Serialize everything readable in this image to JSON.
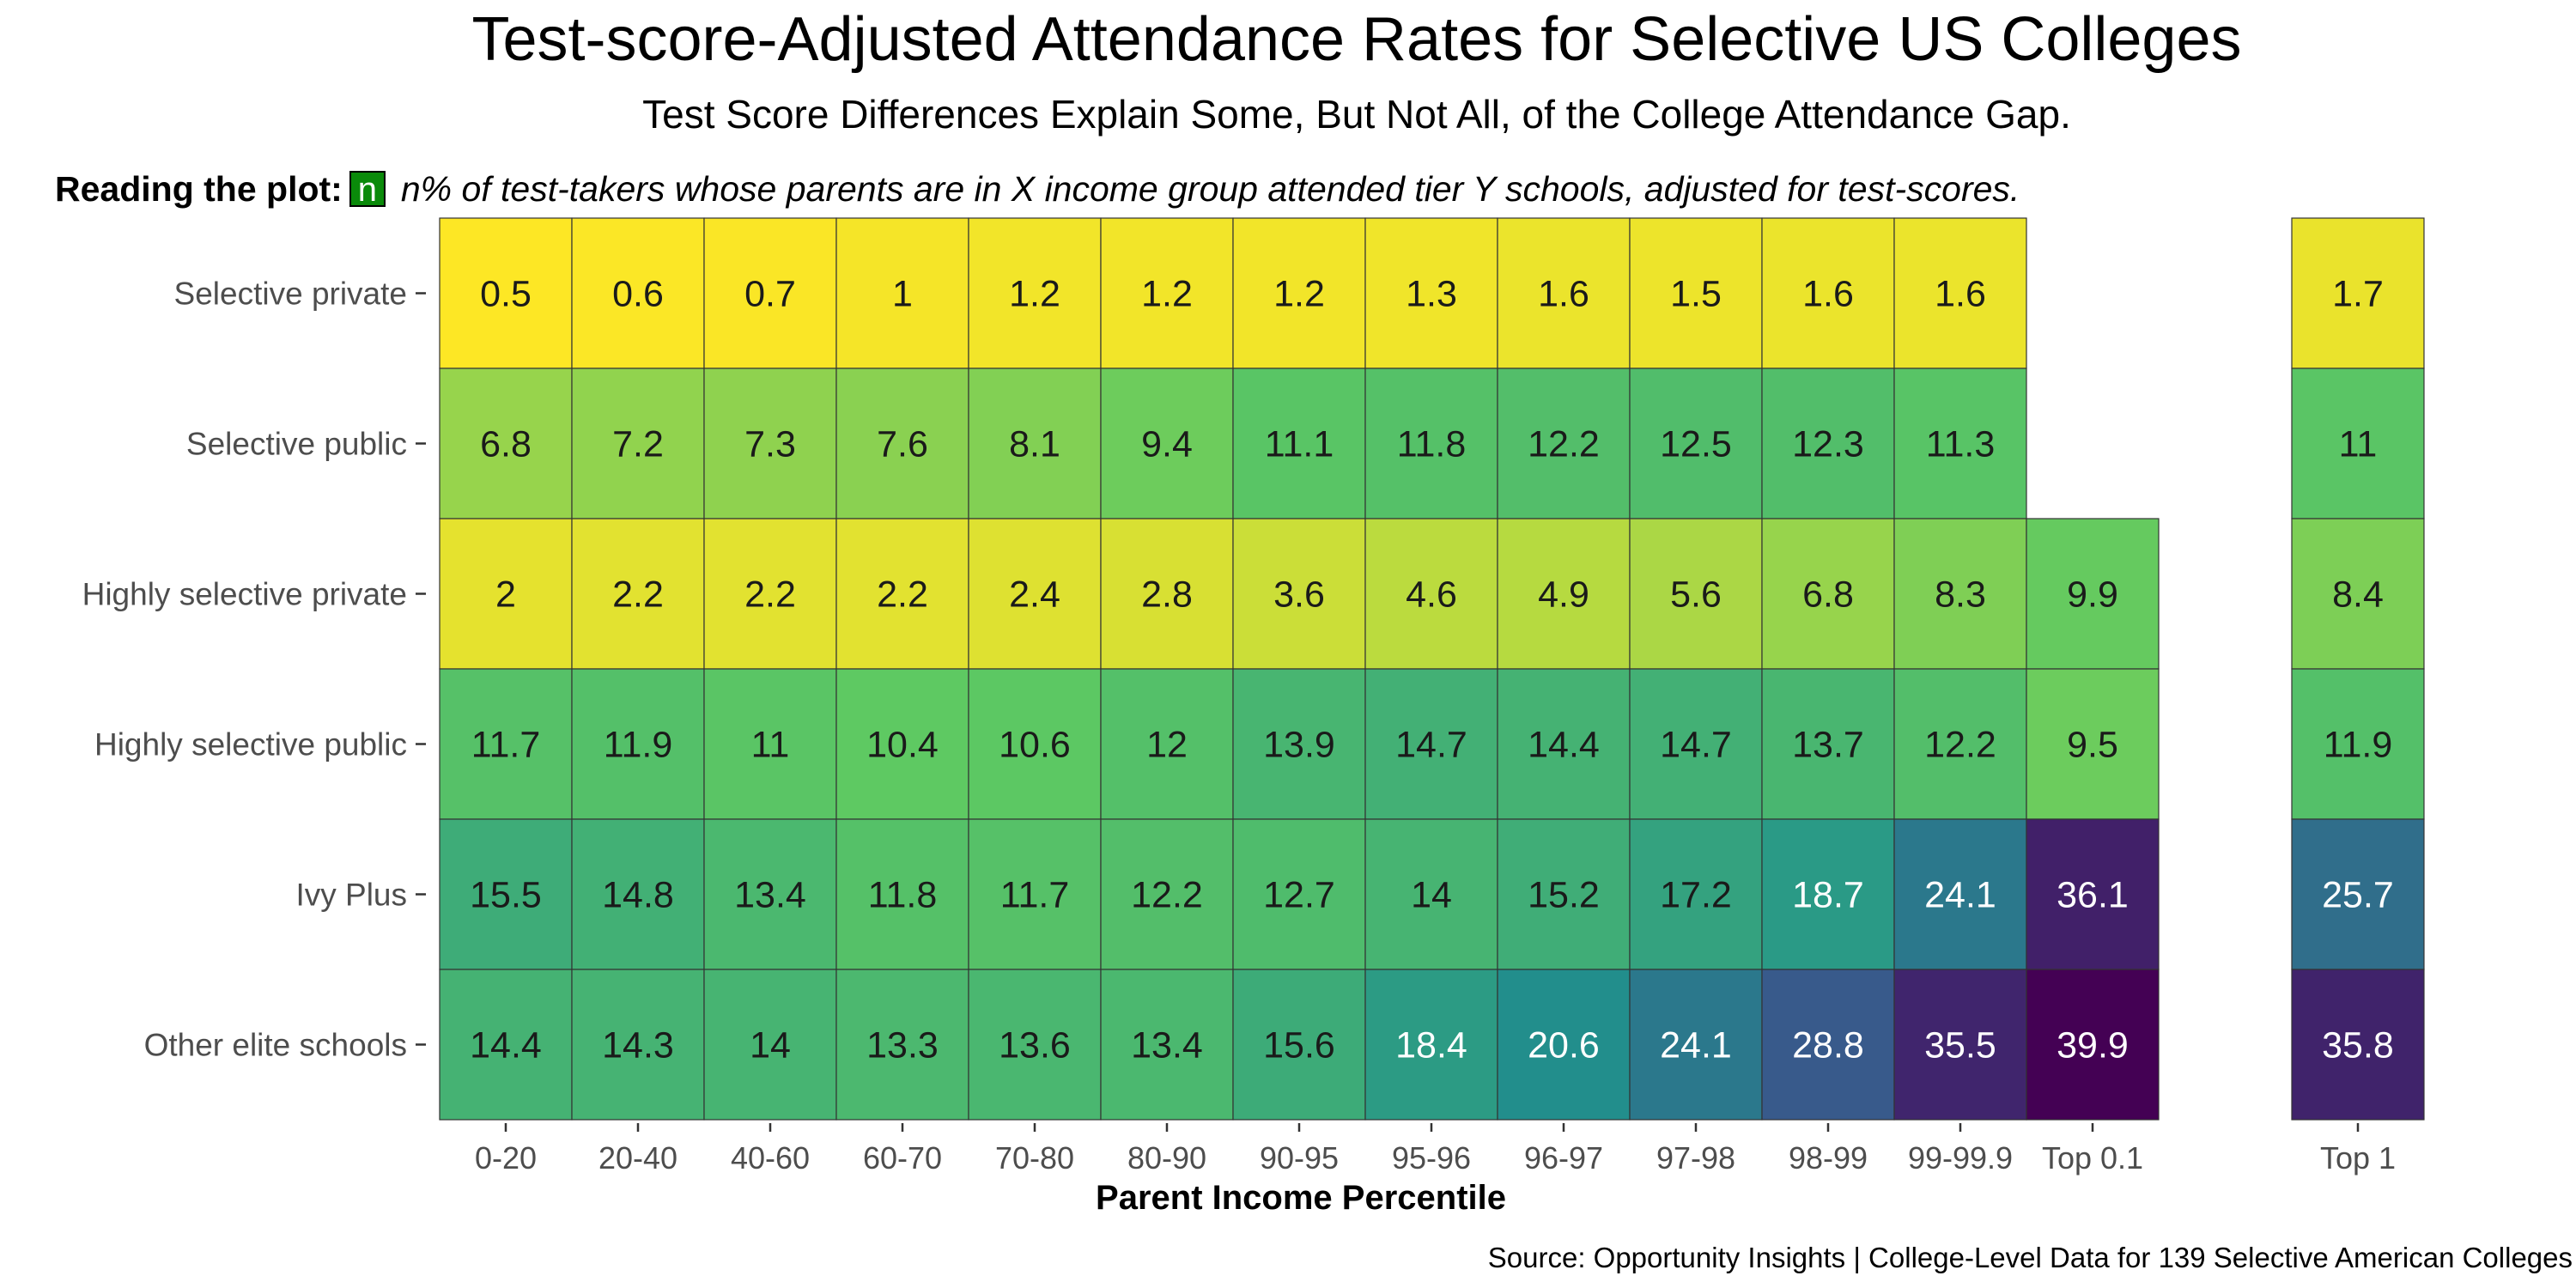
{
  "chart_data": {
    "type": "heatmap",
    "title": "Test-score-Adjusted Attendance Rates for Selective US Colleges",
    "subtitle": "Test Score Differences Explain Some, But Not All, of the College Attendance Gap.",
    "reading_label": "Reading the plot:",
    "reading_box": "n",
    "reading_text": "n% of test-takers whose parents are in X income group attended tier Y schools, adjusted for test-scores.",
    "xlabel": "Parent Income Percentile",
    "source": "Source: Opportunity Insights | College-Level Data for 139 Selective American Colleges",
    "x_main": [
      "0-20",
      "20-40",
      "40-60",
      "60-70",
      "70-80",
      "80-90",
      "90-95",
      "95-96",
      "96-97",
      "97-98",
      "98-99",
      "99-99.9",
      "Top 0.1"
    ],
    "x_side": [
      "Top 1"
    ],
    "y": [
      "Selective private",
      "Selective public",
      "Highly selective private",
      "Highly selective public",
      "Ivy Plus",
      "Other elite schools"
    ],
    "values_main": [
      [
        0.5,
        0.6,
        0.7,
        1,
        1.2,
        1.2,
        1.2,
        1.3,
        1.6,
        1.5,
        1.6,
        1.6,
        null
      ],
      [
        6.8,
        7.2,
        7.3,
        7.6,
        8.1,
        9.4,
        11.1,
        11.8,
        12.2,
        12.5,
        12.3,
        11.3,
        null
      ],
      [
        2,
        2.2,
        2.2,
        2.2,
        2.4,
        2.8,
        3.6,
        4.6,
        4.9,
        5.6,
        6.8,
        8.3,
        9.9
      ],
      [
        11.7,
        11.9,
        11,
        10.4,
        10.6,
        12,
        13.9,
        14.7,
        14.4,
        14.7,
        13.7,
        12.2,
        9.5
      ],
      [
        15.5,
        14.8,
        13.4,
        11.8,
        11.7,
        12.2,
        12.7,
        14,
        15.2,
        17.2,
        18.7,
        24.1,
        36.1
      ],
      [
        14.4,
        14.3,
        14,
        13.3,
        13.6,
        13.4,
        15.6,
        18.4,
        20.6,
        24.1,
        28.8,
        35.5,
        39.9
      ]
    ],
    "values_side": [
      [
        1.7
      ],
      [
        11
      ],
      [
        8.4
      ],
      [
        11.9
      ],
      [
        25.7
      ],
      [
        35.8
      ]
    ],
    "color_scale": "viridis",
    "colors": [
      "#fde725",
      "#5ec962",
      "#21918c",
      "#3b528b",
      "#440154"
    ],
    "cell_border": "#333333"
  }
}
